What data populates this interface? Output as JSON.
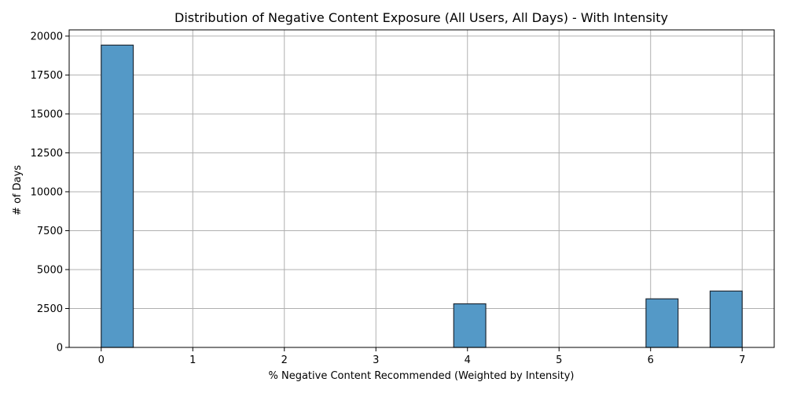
{
  "chart_data": {
    "type": "bar",
    "title": "Distribution of Negative Content Exposure (All Users, All Days) - With Intensity",
    "xlabel": "% Negative Content Recommended (Weighted by Intensity)",
    "ylabel": "# of Days",
    "xlim": [
      -0.35,
      7.35
    ],
    "ylim": [
      0,
      20400
    ],
    "x_ticks": [
      0,
      1,
      2,
      3,
      4,
      5,
      6,
      7
    ],
    "y_ticks": [
      0,
      2500,
      5000,
      7500,
      10000,
      12500,
      15000,
      17500,
      20000
    ],
    "grid": true,
    "bar_color": "#5499c7",
    "bar_edge_color": "#1f2a36",
    "bins": [
      {
        "start": 0.0,
        "end": 0.35,
        "value": 19420
      },
      {
        "start": 3.85,
        "end": 4.2,
        "value": 2800
      },
      {
        "start": 5.95,
        "end": 6.3,
        "value": 3120
      },
      {
        "start": 6.65,
        "end": 7.0,
        "value": 3620
      }
    ]
  }
}
